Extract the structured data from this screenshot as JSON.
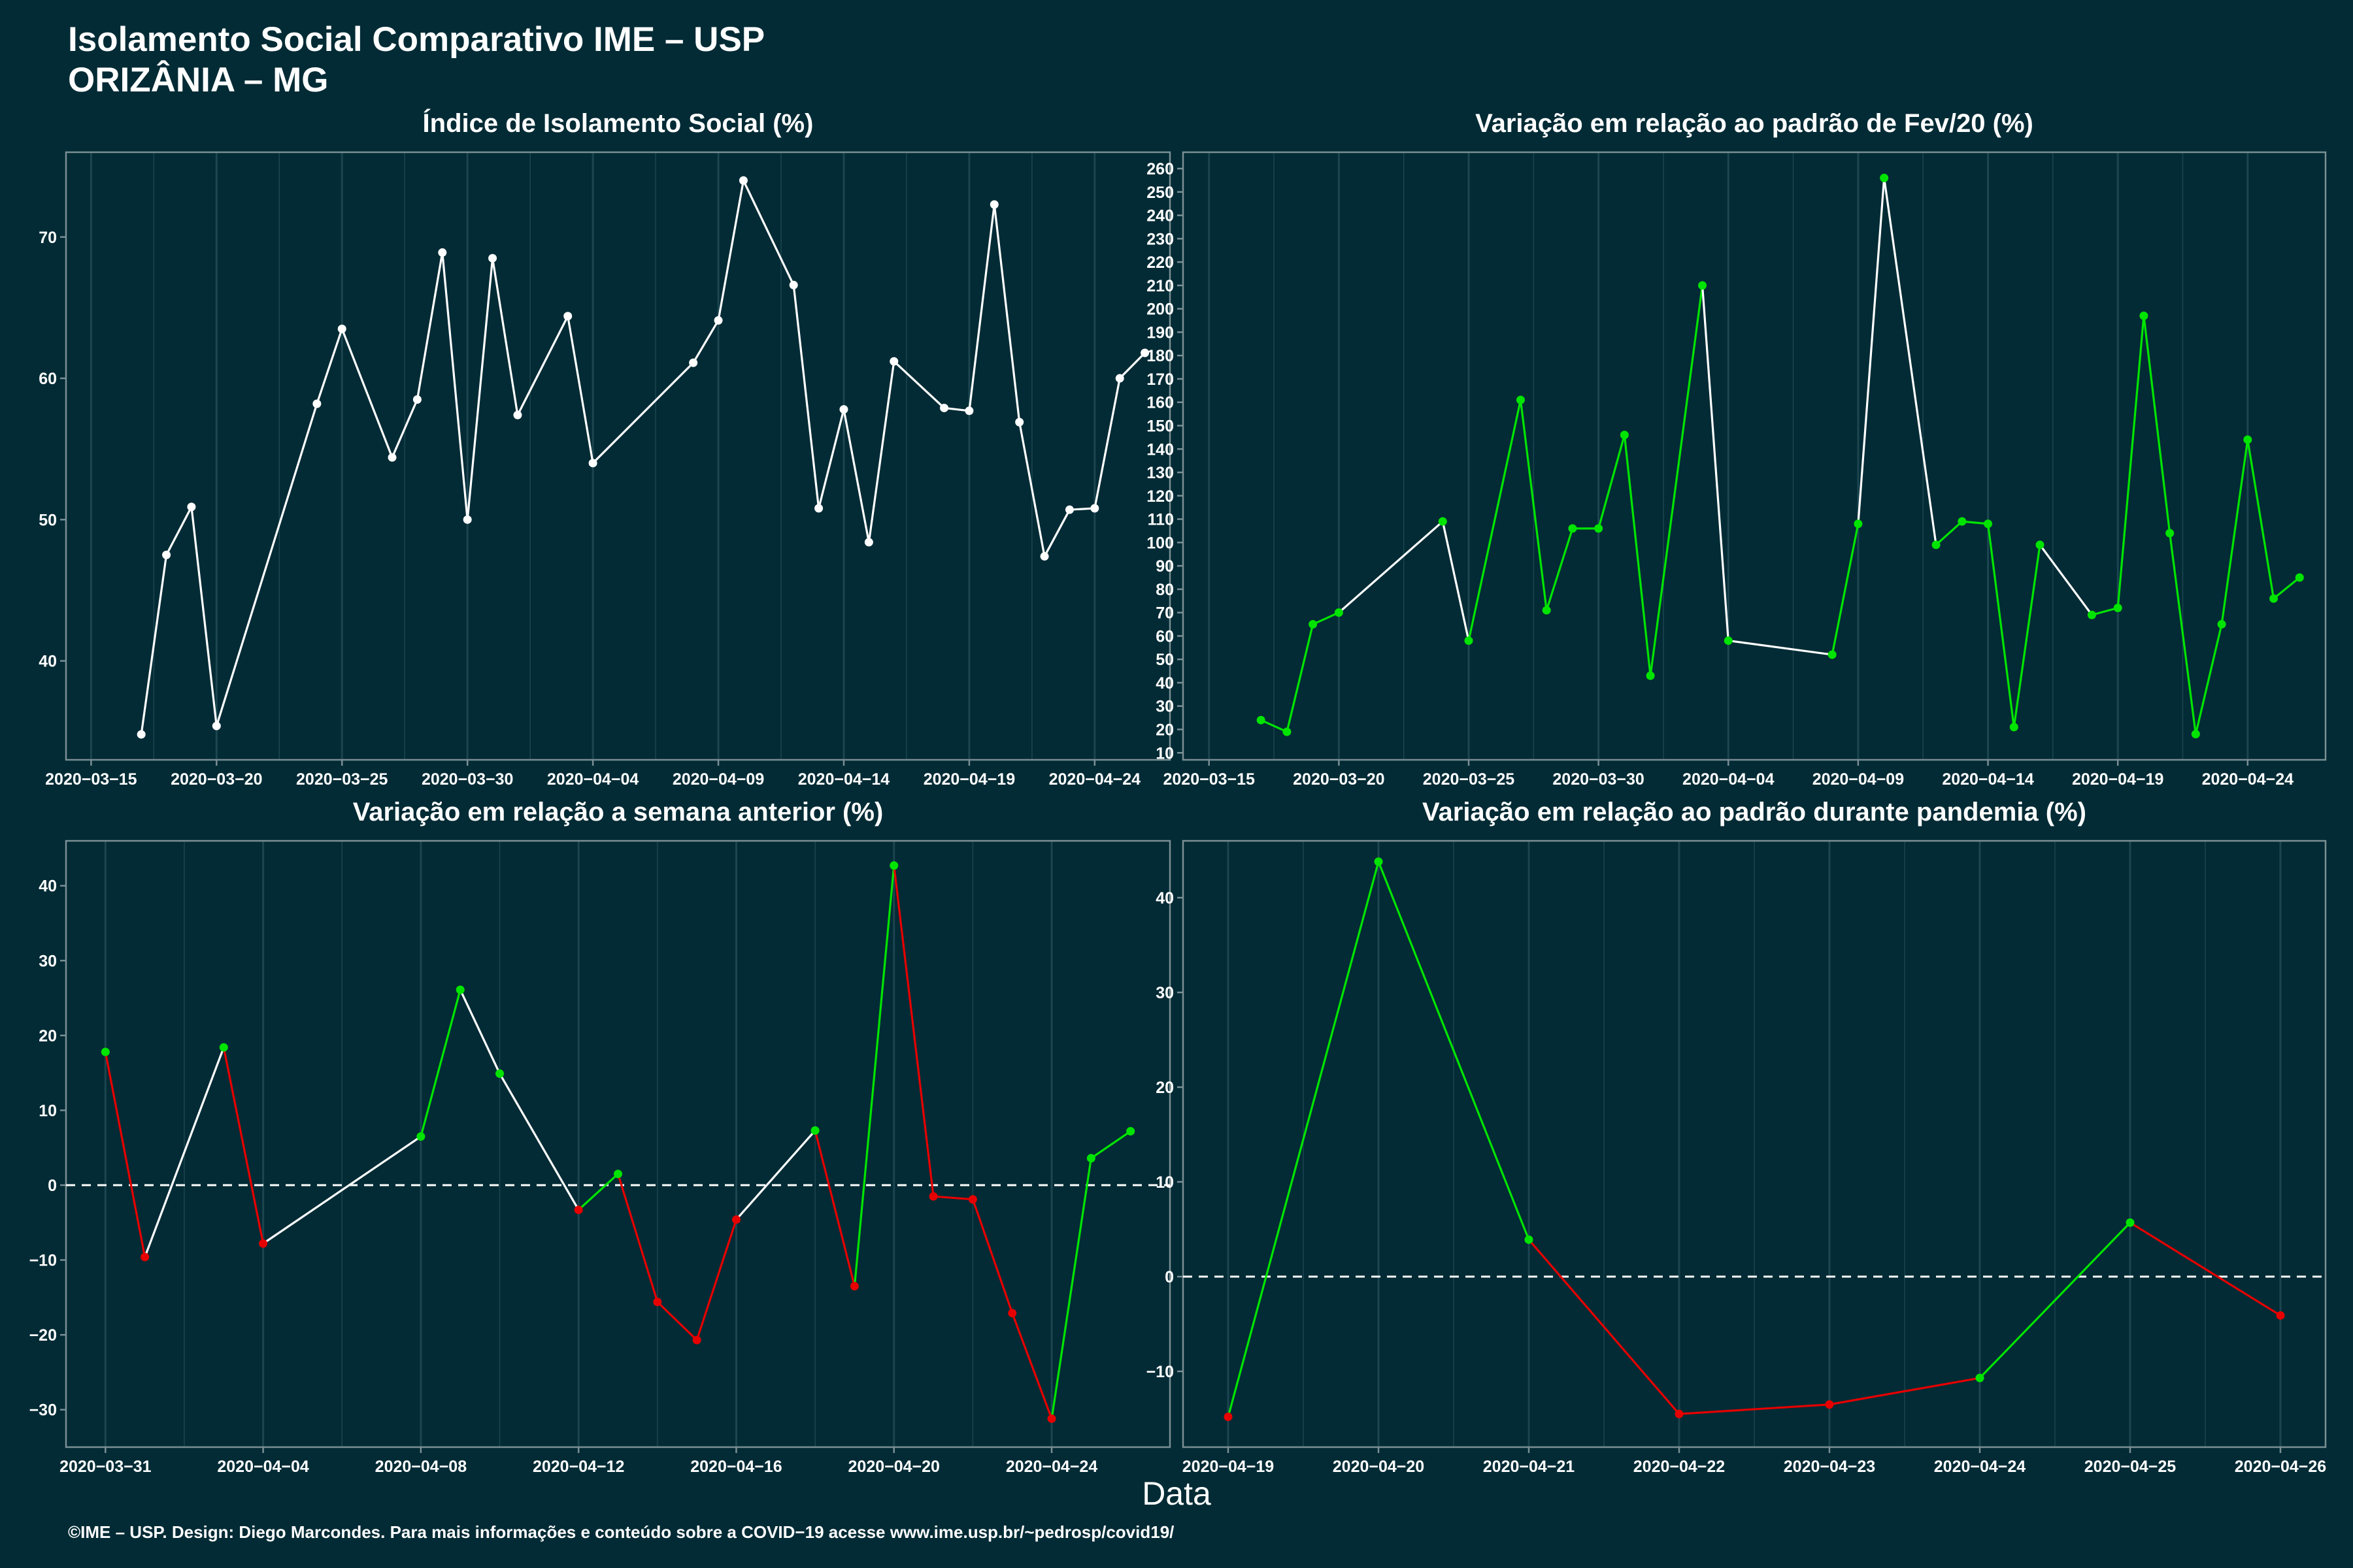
{
  "header": {
    "title_line1": "Isolamento Social Comparativo IME – USP",
    "title_line2": "ORIZÂNIA – MG"
  },
  "footer": "©IME – USP. Design: Diego Marcondes. Para mais informações e conteúdo sobre a COVID−19 acesse www.ime.usp.br/~pedrosp/covid19/",
  "x_axis_label": "Data",
  "colors": {
    "background": "#022b35",
    "gridline": "#1c4550",
    "panel_border": "#7b8f94",
    "neutral": "#ffffff",
    "increase": "#00e400",
    "decrease": "#e60000"
  },
  "chart_data": [
    {
      "type": "line",
      "title": "Índice de Isolamento Social (%)",
      "x_ticks": [
        "2020-03-15",
        "2020-03-20",
        "2020-03-25",
        "2020-03-30",
        "2020-04-04",
        "2020-04-09",
        "2020-04-14",
        "2020-04-19",
        "2020-04-24"
      ],
      "x_range": [
        "2020-03-14",
        "2020-04-27"
      ],
      "ylim": [
        33,
        76
      ],
      "y_ticks": [
        40,
        50,
        60,
        70
      ],
      "zero_line": false,
      "points": [
        {
          "x": "2020-03-17",
          "y": 34.8
        },
        {
          "x": "2020-03-18",
          "y": 47.5
        },
        {
          "x": "2020-03-19",
          "y": 50.9
        },
        {
          "x": "2020-03-20",
          "y": 35.4
        },
        {
          "x": "2020-03-24",
          "y": 58.2
        },
        {
          "x": "2020-03-25",
          "y": 63.5
        },
        {
          "x": "2020-03-27",
          "y": 54.4
        },
        {
          "x": "2020-03-28",
          "y": 58.5
        },
        {
          "x": "2020-03-29",
          "y": 68.9
        },
        {
          "x": "2020-03-30",
          "y": 50.0
        },
        {
          "x": "2020-03-31",
          "y": 68.5
        },
        {
          "x": "2020-04-01",
          "y": 57.4
        },
        {
          "x": "2020-04-03",
          "y": 64.4
        },
        {
          "x": "2020-04-04",
          "y": 54.0
        },
        {
          "x": "2020-04-08",
          "y": 61.1
        },
        {
          "x": "2020-04-09",
          "y": 64.1
        },
        {
          "x": "2020-04-10",
          "y": 74.0
        },
        {
          "x": "2020-04-12",
          "y": 66.6
        },
        {
          "x": "2020-04-13",
          "y": 50.8
        },
        {
          "x": "2020-04-14",
          "y": 57.8
        },
        {
          "x": "2020-04-15",
          "y": 48.4
        },
        {
          "x": "2020-04-16",
          "y": 61.2
        },
        {
          "x": "2020-04-18",
          "y": 57.9
        },
        {
          "x": "2020-04-19",
          "y": 57.7
        },
        {
          "x": "2020-04-20",
          "y": 72.3
        },
        {
          "x": "2020-04-21",
          "y": 56.9
        },
        {
          "x": "2020-04-22",
          "y": 47.4
        },
        {
          "x": "2020-04-23",
          "y": 50.7
        },
        {
          "x": "2020-04-24",
          "y": 50.8
        },
        {
          "x": "2020-04-25",
          "y": 60.0
        },
        {
          "x": "2020-04-26",
          "y": 61.8
        }
      ],
      "segment_colors": [
        "white",
        "white",
        "white",
        "white",
        "white",
        "white",
        "white",
        "white",
        "white",
        "white",
        "white",
        "white",
        "white",
        "white",
        "white",
        "white",
        "white",
        "white",
        "white",
        "white",
        "white",
        "white",
        "white",
        "white",
        "white",
        "white",
        "white",
        "white",
        "white",
        "white"
      ]
    },
    {
      "type": "line",
      "title": "Variação em relação ao padrão de Fev/20 (%)",
      "x_ticks": [
        "2020-03-15",
        "2020-03-20",
        "2020-03-25",
        "2020-03-30",
        "2020-04-04",
        "2020-04-09",
        "2020-04-14",
        "2020-04-19",
        "2020-04-24"
      ],
      "x_range": [
        "2020-03-14",
        "2020-04-27"
      ],
      "ylim": [
        7,
        267
      ],
      "y_ticks": [
        10,
        20,
        30,
        40,
        50,
        60,
        70,
        80,
        90,
        100,
        110,
        120,
        130,
        140,
        150,
        160,
        170,
        180,
        190,
        200,
        210,
        220,
        230,
        240,
        250,
        260
      ],
      "zero_line": false,
      "points": [
        {
          "x": "2020-03-17",
          "y": 24
        },
        {
          "x": "2020-03-18",
          "y": 19
        },
        {
          "x": "2020-03-19",
          "y": 65
        },
        {
          "x": "2020-03-20",
          "y": 70
        },
        {
          "x": "2020-03-24",
          "y": 109
        },
        {
          "x": "2020-03-25",
          "y": 58
        },
        {
          "x": "2020-03-27",
          "y": 161
        },
        {
          "x": "2020-03-28",
          "y": 71
        },
        {
          "x": "2020-03-29",
          "y": 106
        },
        {
          "x": "2020-03-30",
          "y": 106
        },
        {
          "x": "2020-03-31",
          "y": 146
        },
        {
          "x": "2020-04-01",
          "y": 43
        },
        {
          "x": "2020-04-03",
          "y": 210
        },
        {
          "x": "2020-04-04",
          "y": 58
        },
        {
          "x": "2020-04-08",
          "y": 52
        },
        {
          "x": "2020-04-09",
          "y": 108
        },
        {
          "x": "2020-04-10",
          "y": 256
        },
        {
          "x": "2020-04-12",
          "y": 99
        },
        {
          "x": "2020-04-13",
          "y": 109
        },
        {
          "x": "2020-04-14",
          "y": 108
        },
        {
          "x": "2020-04-15",
          "y": 21
        },
        {
          "x": "2020-04-16",
          "y": 99
        },
        {
          "x": "2020-04-18",
          "y": 69
        },
        {
          "x": "2020-04-19",
          "y": 72
        },
        {
          "x": "2020-04-20",
          "y": 197
        },
        {
          "x": "2020-04-21",
          "y": 104
        },
        {
          "x": "2020-04-22",
          "y": 18
        },
        {
          "x": "2020-04-23",
          "y": 65
        },
        {
          "x": "2020-04-24",
          "y": 144
        },
        {
          "x": "2020-04-25",
          "y": 76
        },
        {
          "x": "2020-04-26",
          "y": 85
        }
      ],
      "point_colors": [
        "green",
        "green",
        "green",
        "green",
        "green",
        "green",
        "green",
        "green",
        "green",
        "green",
        "green",
        "green",
        "green",
        "green",
        "green",
        "green",
        "green",
        "green",
        "green",
        "green",
        "green",
        "green",
        "green",
        "green",
        "green",
        "green",
        "green",
        "green",
        "green",
        "green",
        "green"
      ],
      "segment_colors": [
        "green",
        "green",
        "green",
        "white",
        "white",
        "green",
        "green",
        "green",
        "green",
        "green",
        "green",
        "green",
        "white",
        "white",
        "green",
        "white",
        "white",
        "green",
        "green",
        "green",
        "green",
        "white",
        "green",
        "green",
        "green",
        "green",
        "green",
        "green",
        "green",
        "green"
      ]
    },
    {
      "type": "line",
      "title": "Variação em relação a semana anterior (%)",
      "x_ticks": [
        "2020-03-31",
        "2020-04-04",
        "2020-04-08",
        "2020-04-12",
        "2020-04-16",
        "2020-04-20",
        "2020-04-24"
      ],
      "x_range": [
        "2020-03-30",
        "2020-04-27"
      ],
      "ylim": [
        -35,
        46
      ],
      "y_ticks": [
        -30,
        -20,
        -10,
        0,
        10,
        20,
        30,
        40
      ],
      "zero_line": true,
      "points": [
        {
          "x": "2020-03-31",
          "y": 17.8
        },
        {
          "x": "2020-04-01",
          "y": -9.6
        },
        {
          "x": "2020-04-03",
          "y": 18.4
        },
        {
          "x": "2020-04-04",
          "y": -7.8
        },
        {
          "x": "2020-04-08",
          "y": 6.5
        },
        {
          "x": "2020-04-09",
          "y": 26.1
        },
        {
          "x": "2020-04-10",
          "y": 14.9
        },
        {
          "x": "2020-04-12",
          "y": -3.3
        },
        {
          "x": "2020-04-13",
          "y": 1.5
        },
        {
          "x": "2020-04-14",
          "y": -15.6
        },
        {
          "x": "2020-04-15",
          "y": -20.7
        },
        {
          "x": "2020-04-16",
          "y": -4.6
        },
        {
          "x": "2020-04-18",
          "y": 7.3
        },
        {
          "x": "2020-04-19",
          "y": -13.5
        },
        {
          "x": "2020-04-20",
          "y": 42.7
        },
        {
          "x": "2020-04-21",
          "y": -1.5
        },
        {
          "x": "2020-04-22",
          "y": -1.9
        },
        {
          "x": "2020-04-23",
          "y": -17.1
        },
        {
          "x": "2020-04-24",
          "y": -31.2
        },
        {
          "x": "2020-04-25",
          "y": 3.6
        },
        {
          "x": "2020-04-26",
          "y": 7.2
        }
      ],
      "point_colors": [
        "green",
        "red",
        "green",
        "red",
        "green",
        "green",
        "green",
        "red",
        "green",
        "red",
        "red",
        "red",
        "green",
        "red",
        "green",
        "red",
        "red",
        "red",
        "red",
        "green",
        "green"
      ],
      "segment_colors": [
        "red",
        "white",
        "red",
        "white",
        "green",
        "white",
        "white",
        "green",
        "red",
        "red",
        "red",
        "white",
        "red",
        "green",
        "red",
        "red",
        "red",
        "red",
        "green",
        "green"
      ]
    },
    {
      "type": "line",
      "title": "Variação em relação ao padrão durante pandemia (%)",
      "x_ticks": [
        "2020-04-19",
        "2020-04-20",
        "2020-04-21",
        "2020-04-22",
        "2020-04-23",
        "2020-04-24",
        "2020-04-25",
        "2020-04-26"
      ],
      "x_range": [
        "2020-04-18.7",
        "2020-04-26.3"
      ],
      "ylim": [
        -18,
        46
      ],
      "y_ticks": [
        -10,
        0,
        10,
        20,
        30,
        40
      ],
      "zero_line": true,
      "points": [
        {
          "x": "2020-04-19",
          "y": -14.8
        },
        {
          "x": "2020-04-20",
          "y": 43.8
        },
        {
          "x": "2020-04-21",
          "y": 3.9
        },
        {
          "x": "2020-04-22",
          "y": -14.5
        },
        {
          "x": "2020-04-23",
          "y": -13.5
        },
        {
          "x": "2020-04-24",
          "y": -10.7
        },
        {
          "x": "2020-04-25",
          "y": 5.7
        },
        {
          "x": "2020-04-26",
          "y": -4.1
        }
      ],
      "point_colors": [
        "red",
        "green",
        "green",
        "red",
        "red",
        "green",
        "green",
        "red"
      ],
      "segment_colors": [
        "green",
        "green",
        "red",
        "red",
        "red",
        "green",
        "red"
      ]
    }
  ]
}
